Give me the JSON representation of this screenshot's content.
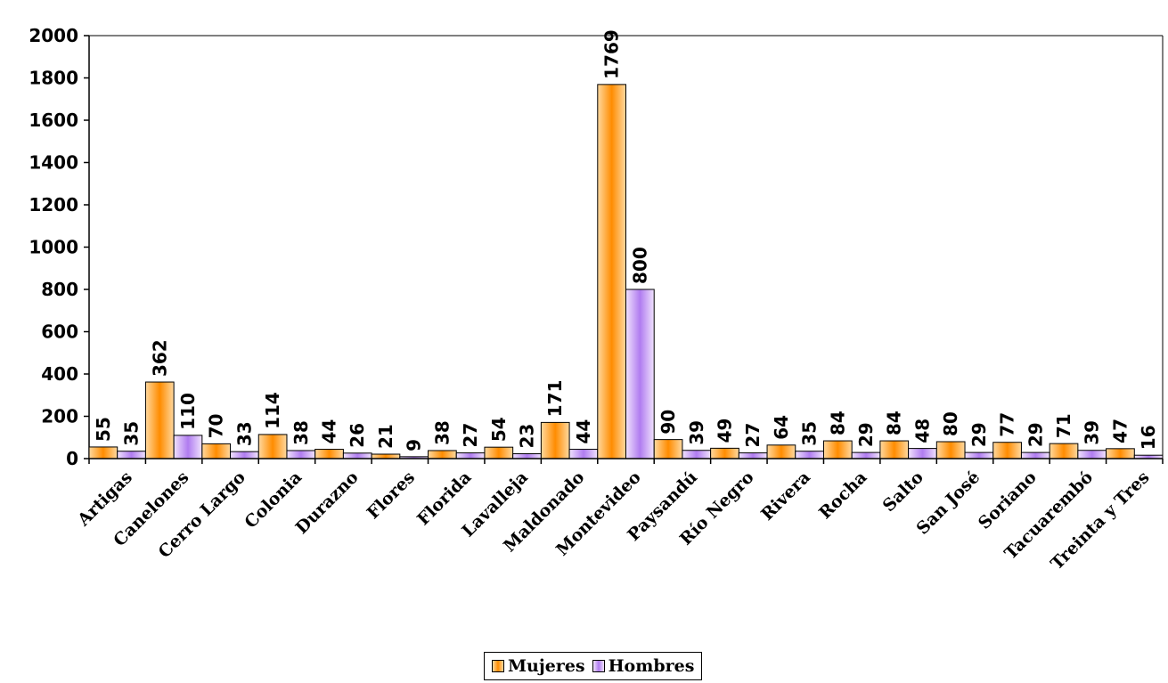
{
  "chart_data": {
    "type": "bar",
    "categories": [
      "Artigas",
      "Canelones",
      "Cerro Largo",
      "Colonia",
      "Durazno",
      "Flores",
      "Florida",
      "Lavalleja",
      "Maldonado",
      "Montevideo",
      "Paysandú",
      "Río Negro",
      "Rivera",
      "Rocha",
      "Salto",
      "San José",
      "Soriano",
      "Tacuarembó",
      "Treinta y Tres"
    ],
    "series": [
      {
        "name": "Mujeres",
        "color": "#ff9a1f",
        "values": [
          55,
          362,
          70,
          114,
          44,
          21,
          38,
          54,
          171,
          1769,
          90,
          49,
          64,
          84,
          84,
          80,
          77,
          71,
          47
        ]
      },
      {
        "name": "Hombres",
        "color": "#c99cf0",
        "values": [
          35,
          110,
          33,
          38,
          26,
          9,
          27,
          23,
          44,
          800,
          39,
          27,
          35,
          29,
          48,
          29,
          29,
          39,
          16
        ]
      }
    ],
    "ylim": [
      0,
      2000
    ],
    "yticks": [
      0,
      200,
      400,
      600,
      800,
      1000,
      1200,
      1400,
      1600,
      1800,
      2000
    ],
    "data_labels": true,
    "grid": false,
    "legend_position": "bottom"
  }
}
